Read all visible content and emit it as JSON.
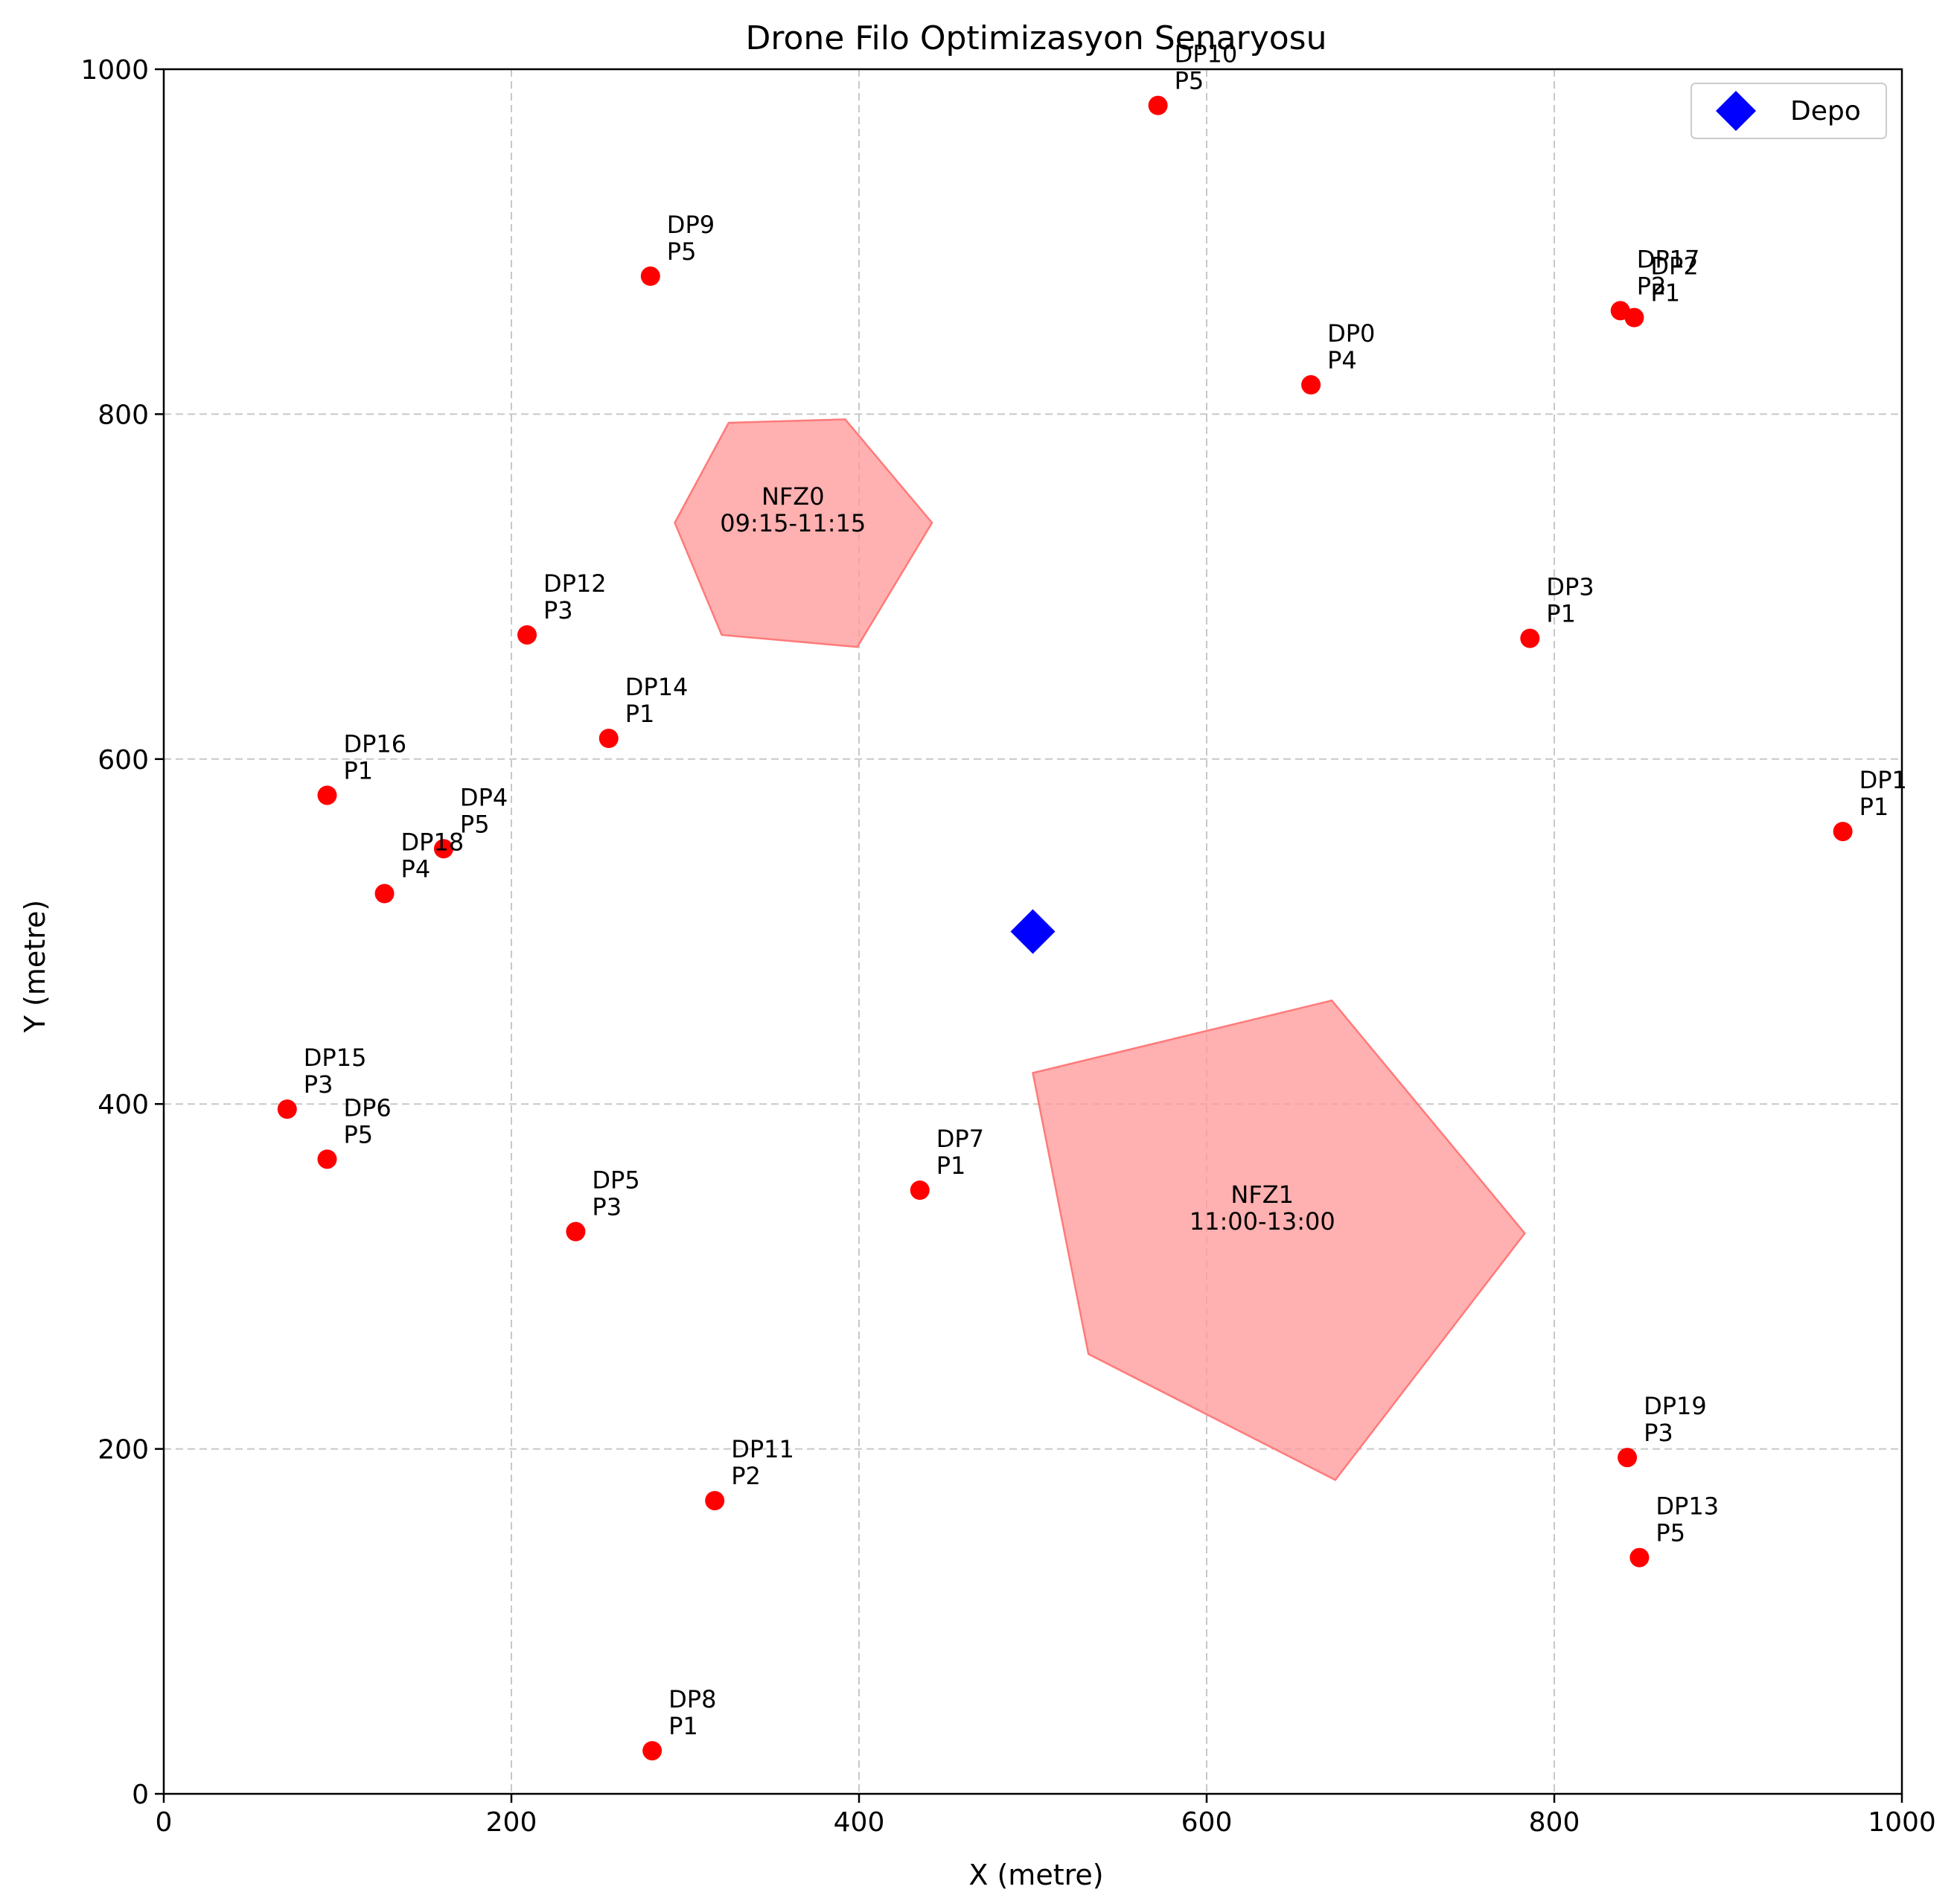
{
  "chart_data": {
    "type": "scatter",
    "title": "Drone Filo Optimizasyon Senaryosu",
    "xlabel": "X (metre)",
    "ylabel": "Y (metre)",
    "xlim": [
      0,
      1000
    ],
    "ylim": [
      0,
      1000
    ],
    "xticks": [
      0,
      200,
      400,
      600,
      800,
      1000
    ],
    "yticks": [
      0,
      200,
      400,
      600,
      800,
      1000
    ],
    "grid": true,
    "legend_position": "top-right",
    "depot": {
      "name": "Depo",
      "x": 500,
      "y": 500,
      "color": "#0000ff"
    },
    "point_color": "#ff0000",
    "nfz_color": "#ff9a9a",
    "delivery_points": [
      {
        "id": "DP0",
        "priority": "P4",
        "x": 660,
        "y": 817
      },
      {
        "id": "DP1",
        "priority": "P1",
        "x": 966,
        "y": 558
      },
      {
        "id": "DP2",
        "priority": "P1",
        "x": 846,
        "y": 856
      },
      {
        "id": "DP3",
        "priority": "P1",
        "x": 786,
        "y": 670
      },
      {
        "id": "DP4",
        "priority": "P5",
        "x": 161,
        "y": 548
      },
      {
        "id": "DP5",
        "priority": "P3",
        "x": 237,
        "y": 326
      },
      {
        "id": "DP6",
        "priority": "P5",
        "x": 94,
        "y": 368
      },
      {
        "id": "DP7",
        "priority": "P1",
        "x": 435,
        "y": 350
      },
      {
        "id": "DP8",
        "priority": "P1",
        "x": 281,
        "y": 25
      },
      {
        "id": "DP9",
        "priority": "P5",
        "x": 280,
        "y": 880
      },
      {
        "id": "DP10",
        "priority": "P5",
        "x": 572,
        "y": 979
      },
      {
        "id": "DP11",
        "priority": "P2",
        "x": 317,
        "y": 170
      },
      {
        "id": "DP12",
        "priority": "P3",
        "x": 209,
        "y": 672
      },
      {
        "id": "DP13",
        "priority": "P5",
        "x": 849,
        "y": 137
      },
      {
        "id": "DP14",
        "priority": "P1",
        "x": 256,
        "y": 612
      },
      {
        "id": "DP15",
        "priority": "P3",
        "x": 71,
        "y": 397
      },
      {
        "id": "DP16",
        "priority": "P1",
        "x": 94,
        "y": 579
      },
      {
        "id": "DP17",
        "priority": "P2",
        "x": 838,
        "y": 860
      },
      {
        "id": "DP18",
        "priority": "P4",
        "x": 127,
        "y": 522
      },
      {
        "id": "DP19",
        "priority": "P3",
        "x": 842,
        "y": 195
      }
    ],
    "no_fly_zones": [
      {
        "name": "NFZ0",
        "time": "09:15-11:15",
        "label_x": 362,
        "label_y": 745,
        "polygon": [
          [
            325,
            795
          ],
          [
            392,
            797
          ],
          [
            442,
            737
          ],
          [
            399,
            665
          ],
          [
            321,
            672
          ],
          [
            294,
            737
          ]
        ]
      },
      {
        "name": "NFZ1",
        "time": "11:00-13:00",
        "label_x": 632,
        "label_y": 340,
        "polygon": [
          [
            500,
            418
          ],
          [
            672,
            460
          ],
          [
            783,
            325
          ],
          [
            674,
            182
          ],
          [
            532,
            255
          ]
        ]
      }
    ]
  }
}
